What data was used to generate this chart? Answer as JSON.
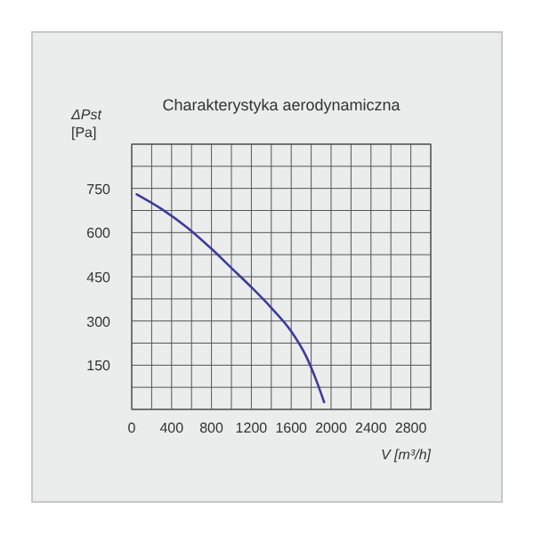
{
  "chart_data": {
    "type": "line",
    "title": "Charakterystyka aerodynamiczna",
    "xlabel": "V [m³/h]",
    "ylabel": "ΔPst [Pa]",
    "xlim": [
      0,
      3000
    ],
    "ylim": [
      0,
      900
    ],
    "xticks": [
      0,
      {
        "value": 200,
        "label": null
      },
      400,
      {
        "value": 600,
        "label": null
      },
      800,
      {
        "value": 1000,
        "label": null
      },
      1200,
      {
        "value": 1400,
        "label": null
      },
      1600,
      {
        "value": 1800,
        "label": null
      },
      2000,
      {
        "value": 2200,
        "label": null
      },
      2400,
      {
        "value": 2600,
        "label": null
      },
      2800,
      {
        "value": 3000,
        "label": null
      }
    ],
    "yticks": [
      {
        "value": 0,
        "label": null
      },
      {
        "value": 75,
        "label": null
      },
      150,
      {
        "value": 225,
        "label": null
      },
      300,
      {
        "value": 375,
        "label": null
      },
      450,
      {
        "value": 525,
        "label": null
      },
      600,
      {
        "value": 675,
        "label": null
      },
      750,
      {
        "value": 825,
        "label": null
      },
      {
        "value": 900,
        "label": null
      }
    ],
    "grid": true,
    "series": [
      {
        "color": "#3c3c9c",
        "x": [
          50,
          300,
          600,
          800,
          1000,
          1200,
          1400,
          1600,
          1750,
          1850,
          1930
        ],
        "values": [
          730,
          680,
          605,
          545,
          480,
          415,
          345,
          265,
          180,
          100,
          25
        ]
      }
    ]
  }
}
